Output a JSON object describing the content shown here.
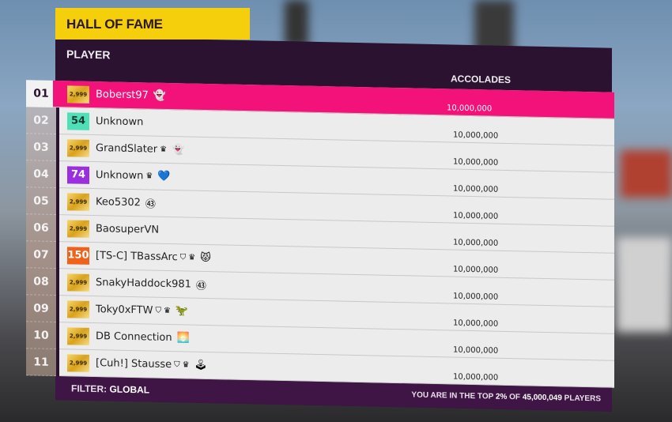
{
  "title": "HALL OF FAME",
  "header": {
    "player": "PLAYER",
    "accolades": "ACCOLADES"
  },
  "rows": [
    {
      "rank": "01",
      "badge": "2,999",
      "badge_type": "gold",
      "name": "Boberst97",
      "icons": [
        "ghost-icon"
      ],
      "accolades": "10,000,000",
      "selected": true
    },
    {
      "rank": "02",
      "badge": "54",
      "badge_type": "teal",
      "name": "Unknown",
      "icons": [],
      "accolades": "10,000,000"
    },
    {
      "rank": "03",
      "badge": "2,999",
      "badge_type": "gold",
      "name": "GrandSlater",
      "icons": [
        "crown-icon",
        "ghost-icon"
      ],
      "accolades": "10,000,000"
    },
    {
      "rank": "04",
      "badge": "74",
      "badge_type": "purple",
      "name": "Unknown",
      "icons": [
        "crown-icon",
        "heart-icon"
      ],
      "accolades": "10,000,000"
    },
    {
      "rank": "05",
      "badge": "2,999",
      "badge_type": "gold",
      "name": "Keo5302",
      "icons": [
        "43-badge-icon"
      ],
      "accolades": "10,000,000"
    },
    {
      "rank": "06",
      "badge": "2,999",
      "badge_type": "gold",
      "name": "BaosuperVN",
      "icons": [],
      "accolades": "10,000,000"
    },
    {
      "rank": "07",
      "badge": "150",
      "badge_type": "orange",
      "name": "[TS-C] TBassArc",
      "icons": [
        "club-shield-icon",
        "crown-icon",
        "cat-icon"
      ],
      "accolades": "10,000,000"
    },
    {
      "rank": "08",
      "badge": "2,999",
      "badge_type": "gold",
      "name": "SnakyHaddock981",
      "icons": [
        "43-badge-icon"
      ],
      "accolades": "10,000,000"
    },
    {
      "rank": "09",
      "badge": "2,999",
      "badge_type": "gold",
      "name": "Toky0xFTW",
      "icons": [
        "club-shield-icon",
        "crown-icon",
        "dragon-icon"
      ],
      "accolades": "10,000,000"
    },
    {
      "rank": "10",
      "badge": "2,999",
      "badge_type": "gold",
      "name": "DB Connection",
      "icons": [
        "sunset-icon"
      ],
      "accolades": "10,000,000"
    },
    {
      "rank": "11",
      "badge": "2,999",
      "badge_type": "gold",
      "name": "[Cuh!] Stausse",
      "icons": [
        "club-shield-icon",
        "crown-icon",
        "joystick-icon"
      ],
      "accolades": "10,000,000"
    }
  ],
  "footer": {
    "filter_label": "FILTER:",
    "filter_value": "GLOBAL",
    "top_prefix": "YOU ARE IN THE TOP",
    "top_percent": "2%",
    "top_of": "OF",
    "total_players": "45,000,049",
    "players_label": "PLAYERS"
  },
  "colors": {
    "selected": "#f3127a",
    "title": "#f5cf0c",
    "panel": "#2a1230",
    "gold": "#d9a21a",
    "teal": "#4fe0b8",
    "purple": "#9b2fe0",
    "orange": "#f0621a"
  }
}
